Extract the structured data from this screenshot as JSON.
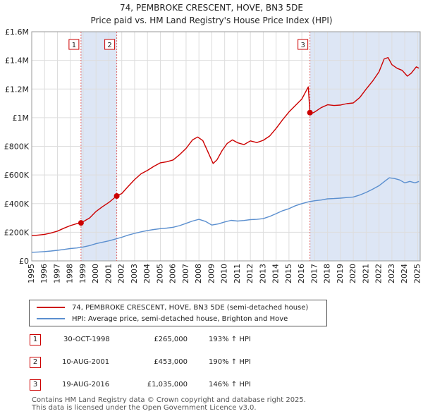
{
  "title_line1": "74, PEMBROKE CRESCENT, HOVE, BN3 5DE",
  "title_line2": "Price paid vs. HM Land Registry's House Price Index (HPI)",
  "colors": {
    "property": "#cc0000",
    "hpi": "#5b8fcf",
    "shade": "#dde6f5",
    "marker_line": "#e06666"
  },
  "chart_data": {
    "type": "line",
    "title": "74, PEMBROKE CRESCENT, HOVE, BN3 5DE — Price paid vs. HM Land Registry's House Price Index (HPI)",
    "xlabel": "",
    "ylabel": "",
    "xlim": [
      1995,
      2025.2
    ],
    "ylim": [
      0,
      1600000
    ],
    "yticks": [
      0,
      200000,
      400000,
      600000,
      800000,
      1000000,
      1200000,
      1400000,
      1600000
    ],
    "ytick_labels": [
      "£0",
      "£200K",
      "£400K",
      "£600K",
      "£800K",
      "£1M",
      "£1.2M",
      "£1.4M",
      "£1.6M"
    ],
    "xticks": [
      1995,
      1996,
      1997,
      1998,
      1999,
      2000,
      2001,
      2002,
      2003,
      2004,
      2005,
      2006,
      2007,
      2008,
      2009,
      2010,
      2011,
      2012,
      2013,
      2014,
      2015,
      2016,
      2017,
      2018,
      2019,
      2020,
      2021,
      2022,
      2023,
      2024,
      2025
    ],
    "series": [
      {
        "name": "74, PEMBROKE CRESCENT, HOVE, BN3 5DE (semi-detached house)",
        "x": [
          1995,
          1995.5,
          1996,
          1996.5,
          1997,
          1997.5,
          1998,
          1998.5,
          1998.83,
          1999.5,
          2000,
          2000.5,
          2001,
          2001.6,
          2002,
          2002.5,
          2003,
          2003.5,
          2004,
          2004.5,
          2005,
          2005.5,
          2006,
          2006.5,
          2007,
          2007.5,
          2007.9,
          2008.3,
          2008.7,
          2009.1,
          2009.4,
          2009.8,
          2010.2,
          2010.6,
          2011,
          2011.5,
          2012,
          2012.5,
          2013,
          2013.5,
          2014,
          2014.5,
          2015,
          2015.5,
          2016,
          2016.5,
          2016.63,
          2016.8,
          2017,
          2017.5,
          2018,
          2018.5,
          2019,
          2019.5,
          2020,
          2020.5,
          2021,
          2021.5,
          2022,
          2022.4,
          2022.7,
          2023,
          2023.4,
          2023.8,
          2024.2,
          2024.5,
          2024.9,
          2025.1
        ],
        "values": [
          176000,
          180000,
          185000,
          195000,
          208000,
          228000,
          246000,
          260000,
          265000,
          300000,
          345000,
          378000,
          408000,
          453000,
          470000,
          520000,
          568000,
          608000,
          632000,
          660000,
          685000,
          692000,
          705000,
          742000,
          785000,
          845000,
          865000,
          840000,
          760000,
          680000,
          705000,
          770000,
          820000,
          845000,
          825000,
          812000,
          838000,
          826000,
          842000,
          872000,
          925000,
          985000,
          1040000,
          1085000,
          1130000,
          1215000,
          1035000,
          1030000,
          1040000,
          1070000,
          1090000,
          1085000,
          1088000,
          1098000,
          1103000,
          1140000,
          1200000,
          1255000,
          1320000,
          1410000,
          1420000,
          1370000,
          1345000,
          1330000,
          1290000,
          1310000,
          1355000,
          1345000
        ]
      },
      {
        "name": "HPI: Average price, semi-detached house, Brighton and Hove",
        "x": [
          1995,
          1995.5,
          1996,
          1996.5,
          1997,
          1997.5,
          1998,
          1998.5,
          1999,
          1999.5,
          2000,
          2000.5,
          2001,
          2001.5,
          2002,
          2002.5,
          2003,
          2003.5,
          2004,
          2004.5,
          2005,
          2005.5,
          2006,
          2006.5,
          2007,
          2007.5,
          2008,
          2008.5,
          2009,
          2009.5,
          2010,
          2010.5,
          2011,
          2011.5,
          2012,
          2012.5,
          2013,
          2013.5,
          2014,
          2014.5,
          2015,
          2015.5,
          2016,
          2016.5,
          2017,
          2017.5,
          2018,
          2018.5,
          2019,
          2019.5,
          2020,
          2020.5,
          2021,
          2021.5,
          2022,
          2022.5,
          2022.8,
          2023.2,
          2023.6,
          2024,
          2024.4,
          2024.8,
          2025.1
        ],
        "values": [
          60000,
          62000,
          65000,
          69000,
          74000,
          80000,
          86000,
          90000,
          97000,
          107000,
          120000,
          130000,
          140000,
          152000,
          165000,
          180000,
          192000,
          203000,
          212000,
          219000,
          225000,
          229000,
          235000,
          246000,
          262000,
          278000,
          290000,
          276000,
          250000,
          258000,
          272000,
          283000,
          278000,
          282000,
          288000,
          290000,
          295000,
          310000,
          330000,
          350000,
          365000,
          385000,
          400000,
          412000,
          420000,
          425000,
          433000,
          435000,
          438000,
          442000,
          446000,
          460000,
          478000,
          500000,
          525000,
          560000,
          580000,
          575000,
          565000,
          545000,
          555000,
          545000,
          555000
        ]
      }
    ],
    "transactions": [
      {
        "id": "1",
        "x": 1998.83,
        "value": 265000
      },
      {
        "id": "2",
        "x": 2001.61,
        "value": 453000
      },
      {
        "id": "3",
        "x": 2016.63,
        "value": 1035000
      }
    ],
    "shaded_ranges": [
      [
        1998.83,
        2001.61
      ],
      [
        2016.63,
        2025.2
      ]
    ]
  },
  "legend": {
    "property_label": "74, PEMBROKE CRESCENT, HOVE, BN3 5DE (semi-detached house)",
    "hpi_label": "HPI: Average price, semi-detached house, Brighton and Hove"
  },
  "transactions_table": [
    {
      "id": "1",
      "date": "30-OCT-1998",
      "price": "£265,000",
      "hpi": "193% ↑ HPI"
    },
    {
      "id": "2",
      "date": "10-AUG-2001",
      "price": "£453,000",
      "hpi": "190% ↑ HPI"
    },
    {
      "id": "3",
      "date": "19-AUG-2016",
      "price": "£1,035,000",
      "hpi": "146% ↑ HPI"
    }
  ],
  "footer": {
    "line1": "Contains HM Land Registry data © Crown copyright and database right 2025.",
    "line2": "This data is licensed under the Open Government Licence v3.0."
  }
}
